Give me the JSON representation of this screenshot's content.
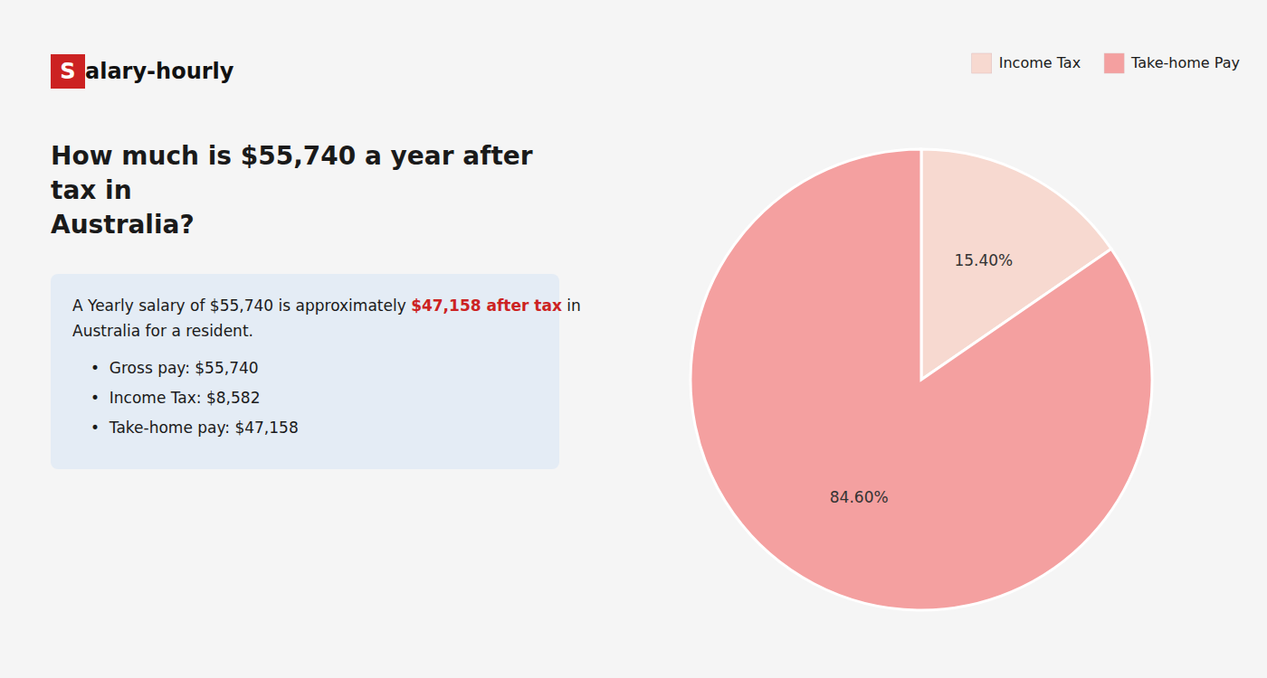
{
  "chart_data": {
    "type": "pie",
    "title": "How much is $55,740 a year after tax in\nAustralia?",
    "categories": [
      "Income Tax",
      "Take-home Pay"
    ],
    "values": [
      15.4,
      84.6
    ],
    "value_labels": [
      "15.40%",
      "84.60%"
    ],
    "colors": [
      "#f7d9d0",
      "#f4a0a0"
    ],
    "data_labels": true,
    "legend": "top-right",
    "annotations": [
      "S",
      "alary-hourly",
      "A Yearly salary of $55,740 is approximately ",
      "$47,158 after tax",
      " in",
      "Australia for a resident.",
      "•  Gross pay: $55,740",
      "•  Income Tax: $8,582",
      "•  Take-home pay: $47,158"
    ]
  }
}
